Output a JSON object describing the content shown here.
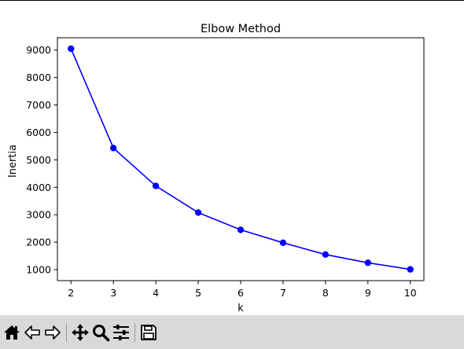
{
  "window": {
    "toolbar": {
      "buttons": [
        {
          "name": "home-button",
          "icon": "home-icon"
        },
        {
          "name": "back-button",
          "icon": "back-arrow-icon"
        },
        {
          "name": "forward-button",
          "icon": "forward-arrow-icon"
        },
        {
          "name": "pan-button",
          "icon": "move-icon"
        },
        {
          "name": "zoom-button",
          "icon": "zoom-icon"
        },
        {
          "name": "configure-subplots-button",
          "icon": "sliders-icon"
        },
        {
          "name": "save-button",
          "icon": "save-icon"
        }
      ]
    }
  },
  "chart_data": {
    "type": "line",
    "title": "Elbow Method",
    "xlabel": "k",
    "ylabel": "Inertia",
    "x": [
      2,
      3,
      4,
      5,
      6,
      7,
      8,
      9,
      10
    ],
    "series": [
      {
        "values": [
          9050,
          5430,
          4050,
          3080,
          2450,
          1980,
          1550,
          1250,
          1010
        ],
        "color": "#0000ff",
        "marker": "circle"
      }
    ],
    "xlim": [
      1.68,
      10.32
    ],
    "ylim": [
      600,
      9450
    ],
    "xticks": [
      2,
      3,
      4,
      5,
      6,
      7,
      8,
      9,
      10
    ],
    "yticks": [
      1000,
      2000,
      3000,
      4000,
      5000,
      6000,
      7000,
      8000,
      9000
    ],
    "grid": false
  }
}
